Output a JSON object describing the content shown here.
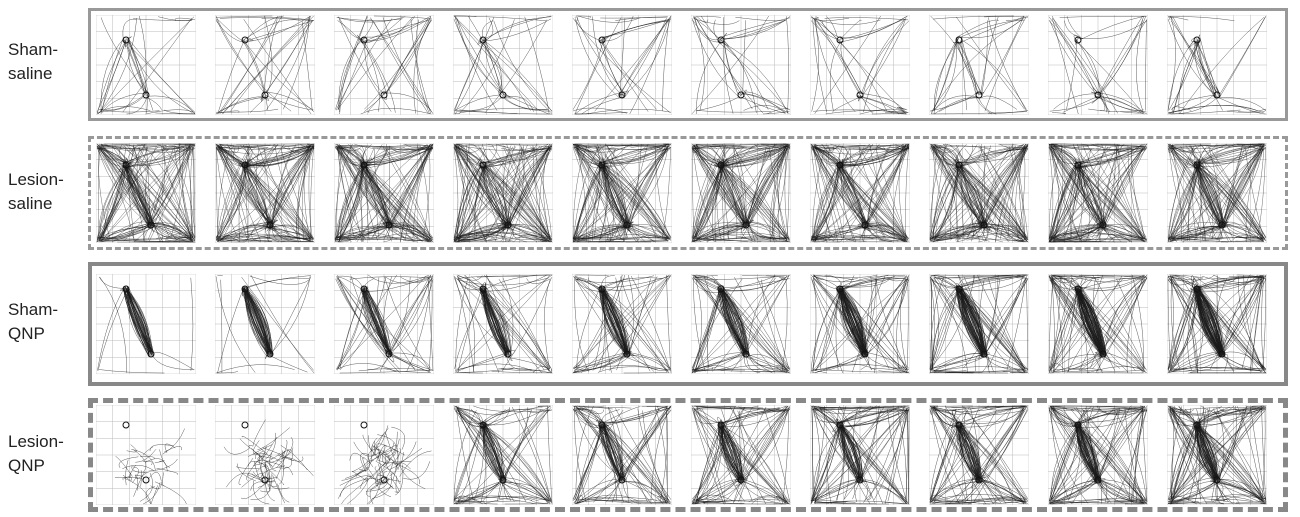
{
  "rows": [
    {
      "label": [
        "Sham-",
        "saline"
      ]
    },
    {
      "label": [
        "Lesion-",
        "saline"
      ]
    },
    {
      "label": [
        "Sham-",
        "QNP"
      ]
    },
    {
      "label": [
        "Lesion-",
        "QNP"
      ]
    }
  ]
}
